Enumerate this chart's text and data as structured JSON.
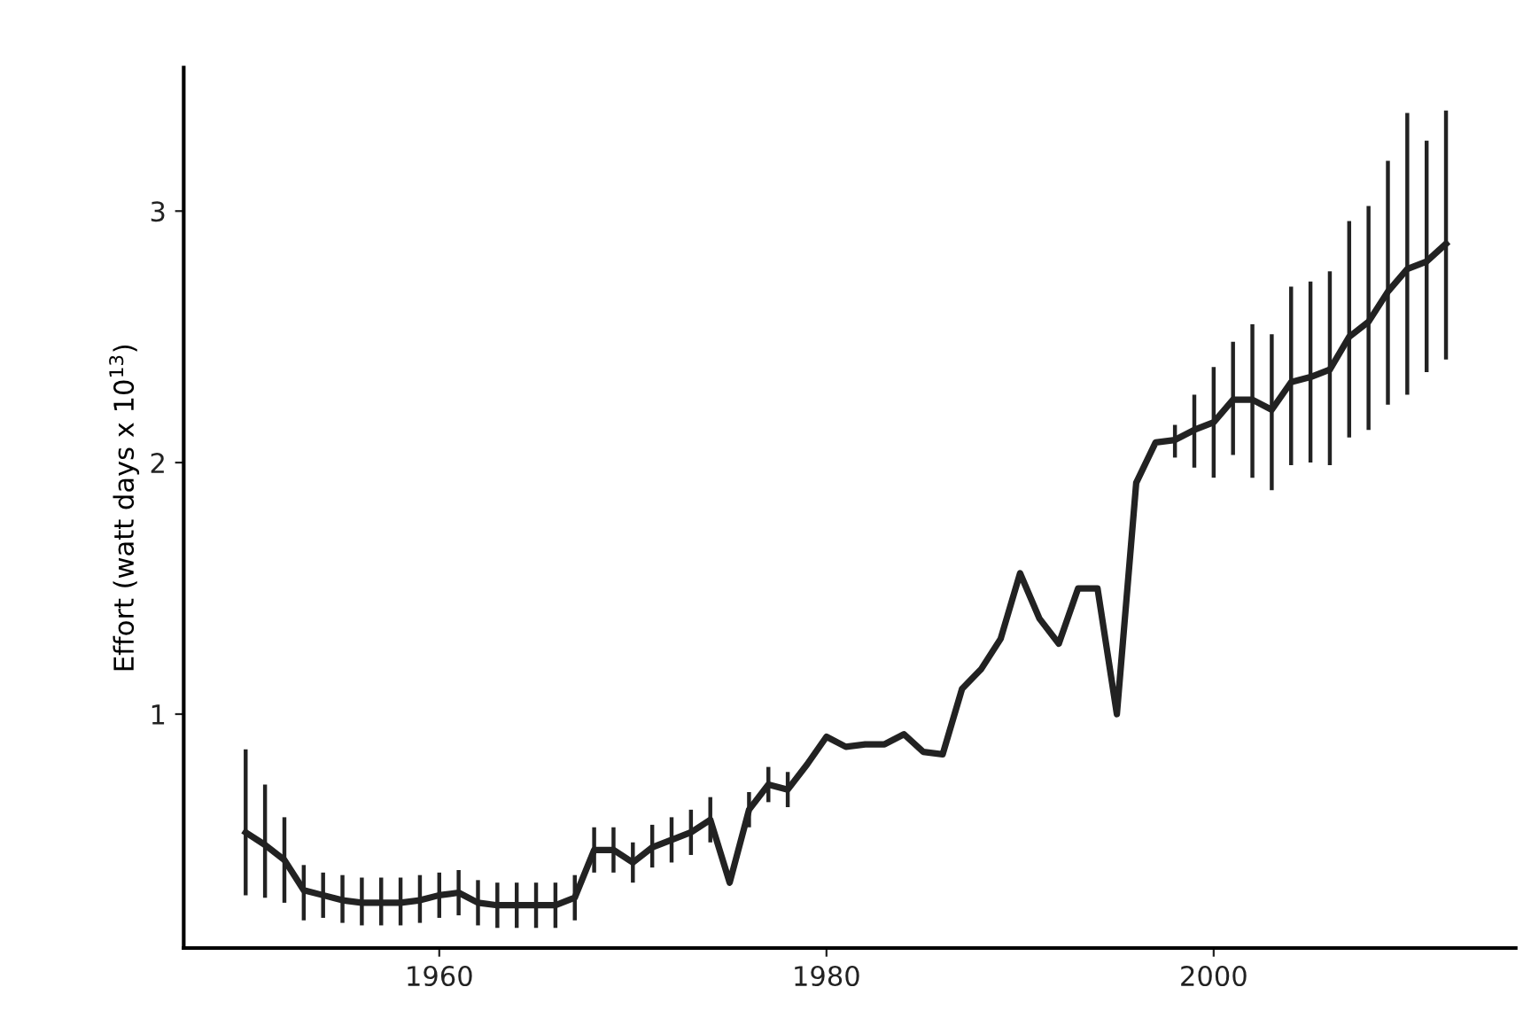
{
  "chart_data": {
    "type": "line",
    "ylabel": "Effort (watt days x 10$^{13}$)",
    "x": [
      1950,
      1951,
      1952,
      1953,
      1954,
      1955,
      1956,
      1957,
      1958,
      1959,
      1960,
      1961,
      1962,
      1963,
      1964,
      1965,
      1966,
      1967,
      1968,
      1969,
      1970,
      1971,
      1972,
      1973,
      1974,
      1975,
      1976,
      1977,
      1978,
      1979,
      1980,
      1981,
      1982,
      1983,
      1984,
      1985,
      1986,
      1987,
      1988,
      1989,
      1990,
      1991,
      1992,
      1993,
      1994,
      1995,
      1996,
      1997,
      1998,
      1999,
      2000,
      2001,
      2002,
      2003,
      2004,
      2005,
      2006,
      2007,
      2008,
      2009,
      2010,
      2011,
      2012
    ],
    "series": [
      {
        "color": "#222222",
        "values": [
          0.53,
          0.48,
          0.42,
          0.3,
          0.28,
          0.26,
          0.25,
          0.25,
          0.25,
          0.26,
          0.28,
          0.29,
          0.25,
          0.24,
          0.24,
          0.24,
          0.24,
          0.27,
          0.46,
          0.46,
          0.41,
          0.47,
          0.5,
          0.53,
          0.58,
          0.33,
          0.62,
          0.72,
          0.7,
          0.8,
          0.91,
          0.87,
          0.88,
          0.88,
          0.92,
          0.85,
          0.84,
          1.1,
          1.18,
          1.3,
          1.56,
          1.38,
          1.28,
          1.5,
          1.5,
          1.0,
          1.92,
          2.08,
          2.09,
          2.13,
          2.16,
          2.25,
          2.25,
          2.21,
          2.32,
          2.34,
          2.37,
          2.5,
          2.56,
          2.68,
          2.77,
          2.8,
          2.87
        ],
        "errors": [
          [
            0.28,
            0.86
          ],
          [
            0.27,
            0.72
          ],
          [
            0.25,
            0.59
          ],
          [
            0.18,
            0.4
          ],
          [
            0.19,
            0.37
          ],
          [
            0.17,
            0.36
          ],
          [
            0.16,
            0.35
          ],
          [
            0.16,
            0.35
          ],
          [
            0.16,
            0.35
          ],
          [
            0.17,
            0.36
          ],
          [
            0.19,
            0.37
          ],
          [
            0.2,
            0.38
          ],
          [
            0.16,
            0.34
          ],
          [
            0.15,
            0.33
          ],
          [
            0.15,
            0.33
          ],
          [
            0.15,
            0.33
          ],
          [
            0.15,
            0.33
          ],
          [
            0.18,
            0.36
          ],
          [
            0.37,
            0.55
          ],
          [
            0.37,
            0.55
          ],
          [
            0.33,
            0.49
          ],
          [
            0.39,
            0.56
          ],
          [
            0.41,
            0.59
          ],
          [
            0.44,
            0.62
          ],
          [
            0.49,
            0.67
          ],
          null,
          [
            0.55,
            0.69
          ],
          [
            0.65,
            0.79
          ],
          [
            0.63,
            0.77
          ],
          null,
          null,
          null,
          null,
          null,
          null,
          null,
          null,
          null,
          null,
          null,
          null,
          null,
          null,
          null,
          null,
          null,
          null,
          null,
          [
            2.02,
            2.15
          ],
          [
            1.98,
            2.27
          ],
          [
            1.94,
            2.38
          ],
          [
            2.03,
            2.48
          ],
          [
            1.94,
            2.55
          ],
          [
            1.89,
            2.51
          ],
          [
            1.99,
            2.7
          ],
          [
            2.0,
            2.72
          ],
          [
            1.99,
            2.76
          ],
          [
            2.1,
            2.96
          ],
          [
            2.13,
            3.02
          ],
          [
            2.23,
            3.2
          ],
          [
            2.27,
            3.39
          ],
          [
            2.36,
            3.28
          ],
          [
            2.41,
            3.4
          ]
        ]
      }
    ],
    "xlim": [
      1946.8,
      2015.6
    ],
    "xticks": [
      1960,
      1980,
      2000
    ],
    "ylim": [
      0.07,
      3.57
    ],
    "yticks": [
      1,
      2,
      3
    ],
    "grid": false,
    "legend": false,
    "marker": "none",
    "line_style": "solid"
  }
}
